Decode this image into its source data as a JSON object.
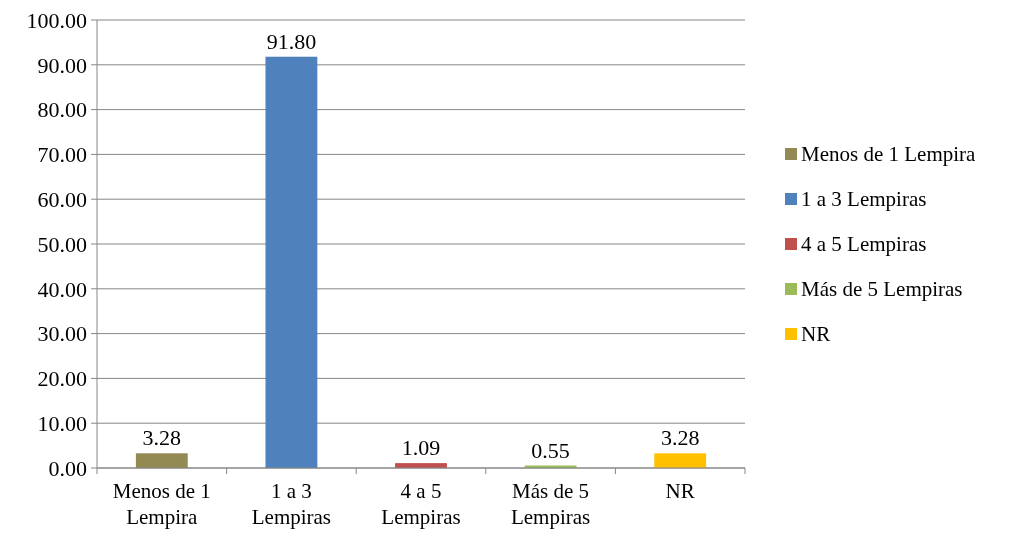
{
  "chart_data": {
    "type": "bar",
    "categories": [
      "Menos de 1 Lempira",
      "1 a 3 Lempiras",
      "4 a 5 Lempiras",
      "Más de 5 Lempiras",
      "NR"
    ],
    "series": [
      {
        "name": "Menos de 1 Lempira",
        "color": "#938953",
        "values": [
          3.28,
          null,
          null,
          null,
          null
        ],
        "value_labels": [
          "3.28",
          null,
          null,
          null,
          null
        ]
      },
      {
        "name": "1 a 3 Lempiras",
        "color": "#4f81bd",
        "values": [
          null,
          91.8,
          null,
          null,
          null
        ],
        "value_labels": [
          null,
          "91.80",
          null,
          null,
          null
        ]
      },
      {
        "name": "4 a 5 Lempiras",
        "color": "#c0504d",
        "values": [
          null,
          null,
          1.09,
          null,
          null
        ],
        "value_labels": [
          null,
          null,
          "1.09",
          null,
          null
        ]
      },
      {
        "name": "Más de 5 Lempiras",
        "color": "#9bbb59",
        "values": [
          null,
          null,
          null,
          0.55,
          null
        ],
        "value_labels": [
          null,
          null,
          null,
          "0.55",
          null
        ]
      },
      {
        "name": "NR",
        "color": "#ffc000",
        "values": [
          null,
          null,
          null,
          null,
          3.28
        ],
        "value_labels": [
          null,
          null,
          null,
          null,
          "3.28"
        ]
      }
    ],
    "ylim": [
      0,
      100
    ],
    "yticks": [
      {
        "value": 0,
        "label": "0.00"
      },
      {
        "value": 10,
        "label": "10.00"
      },
      {
        "value": 20,
        "label": "20.00"
      },
      {
        "value": 30,
        "label": "30.00"
      },
      {
        "value": 40,
        "label": "40.00"
      },
      {
        "value": 50,
        "label": "50.00"
      },
      {
        "value": 60,
        "label": "60.00"
      },
      {
        "value": 70,
        "label": "70.00"
      },
      {
        "value": 80,
        "label": "80.00"
      },
      {
        "value": 90,
        "label": "90.00"
      },
      {
        "value": 100,
        "label": "100.00"
      }
    ],
    "grid": "y",
    "legend": "right"
  }
}
